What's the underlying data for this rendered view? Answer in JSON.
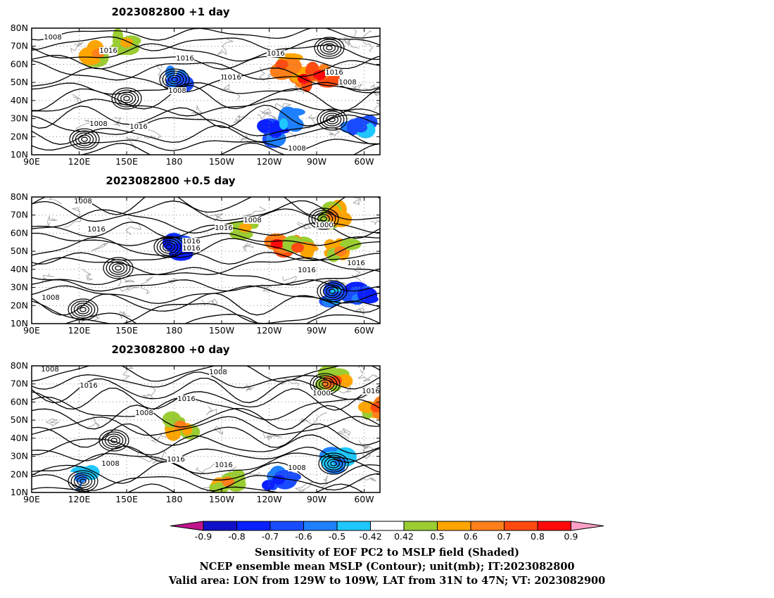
{
  "chart_data": [
    {
      "type": "heatmap",
      "title": "2023082800  +1 day",
      "x_ticks": [
        "90E",
        "120E",
        "150E",
        "180",
        "150W",
        "120W",
        "90W",
        "60W"
      ],
      "y_ticks": [
        "10N",
        "20N",
        "30N",
        "40N",
        "50N",
        "60N",
        "70N",
        "80N"
      ],
      "xlim": [
        90,
        310
      ],
      "ylim": [
        10,
        80
      ],
      "contour_labels": [
        "1008",
        "1016",
        "1016",
        "1008",
        "1016",
        "1008",
        "1008",
        "1016",
        "1008",
        "1016",
        "1008",
        "1016",
        "1016"
      ],
      "shaded_regions": [
        {
          "lon": 262,
          "lat": 52,
          "value": 0.8
        },
        {
          "lon": 272,
          "lat": 54,
          "value": 0.8
        },
        {
          "lon": 248,
          "lat": 60,
          "value": 0.7
        },
        {
          "lon": 132,
          "lat": 66,
          "value": 0.6
        },
        {
          "lon": 150,
          "lat": 72,
          "value": 0.5
        },
        {
          "lon": 244,
          "lat": 22,
          "value": -0.8
        },
        {
          "lon": 255,
          "lat": 30,
          "value": -0.6
        },
        {
          "lon": 298,
          "lat": 25,
          "value": -0.7
        },
        {
          "lon": 184,
          "lat": 52,
          "value": -0.7
        }
      ],
      "grid": true
    },
    {
      "type": "heatmap",
      "title": "2023082800  +0.5 day",
      "x_ticks": [
        "90E",
        "120E",
        "150E",
        "180",
        "150W",
        "120W",
        "90W",
        "60W"
      ],
      "y_ticks": [
        "10N",
        "20N",
        "30N",
        "40N",
        "50N",
        "60N",
        "70N",
        "80N"
      ],
      "xlim": [
        90,
        310
      ],
      "ylim": [
        10,
        80
      ],
      "contour_labels": [
        "1008",
        "1016",
        "1016",
        "1016",
        "1016",
        "1008",
        "1000",
        "1016",
        "1016",
        "1008"
      ],
      "shaded_regions": [
        {
          "lon": 245,
          "lat": 54,
          "value": 0.8
        },
        {
          "lon": 258,
          "lat": 52,
          "value": 0.7
        },
        {
          "lon": 280,
          "lat": 70,
          "value": 0.6
        },
        {
          "lon": 285,
          "lat": 50,
          "value": 0.6
        },
        {
          "lon": 225,
          "lat": 63,
          "value": 0.5
        },
        {
          "lon": 283,
          "lat": 25,
          "value": -0.7
        },
        {
          "lon": 300,
          "lat": 27,
          "value": -0.8
        },
        {
          "lon": 183,
          "lat": 52,
          "value": -0.8
        }
      ],
      "grid": true
    },
    {
      "type": "heatmap",
      "title": "2023082800  +0 day",
      "x_ticks": [
        "90E",
        "120E",
        "150E",
        "180",
        "150W",
        "120W",
        "90W",
        "60W"
      ],
      "y_ticks": [
        "10N",
        "20N",
        "30N",
        "40N",
        "50N",
        "60N",
        "70N",
        "80N"
      ],
      "xlim": [
        90,
        310
      ],
      "ylim": [
        10,
        80
      ],
      "contour_labels": [
        "1008",
        "1016",
        "1016",
        "1008",
        "1008",
        "1016",
        "1016",
        "1000",
        "1016",
        "1008",
        "1008"
      ],
      "shaded_regions": [
        {
          "lon": 282,
          "lat": 72,
          "value": 0.7
        },
        {
          "lon": 308,
          "lat": 57,
          "value": 0.7
        },
        {
          "lon": 184,
          "lat": 47,
          "value": 0.6
        },
        {
          "lon": 214,
          "lat": 16,
          "value": 0.6
        },
        {
          "lon": 285,
          "lat": 27,
          "value": -0.6
        },
        {
          "lon": 121,
          "lat": 18,
          "value": -0.6
        },
        {
          "lon": 246,
          "lat": 17,
          "value": -0.8
        }
      ],
      "grid": true
    }
  ],
  "colorbar": {
    "labels": [
      "-0.9",
      "-0.8",
      "-0.7",
      "-0.6",
      "-0.5",
      "-0.42",
      "0.42",
      "0.5",
      "0.6",
      "0.7",
      "0.8",
      "0.9"
    ],
    "colors": [
      "#1010c8",
      "#0a20ff",
      "#1a4cff",
      "#1e80ff",
      "#1ec8ff",
      "#ffffff",
      "#9acd32",
      "#ffa500",
      "#ff7f1a",
      "#ff4a10",
      "#ff0a0a"
    ],
    "under_color": "#c0148c",
    "over_color": "#ffa0c8"
  },
  "captions": [
    "Sensitivity of EOF PC2 to MSLP field (Shaded)",
    "NCEP ensemble mean MSLP (Contour); unit(mb); IT:2023082800",
    "Valid area: LON from 129W to 109W, LAT from 31N to 47N; VT: 2023082900"
  ]
}
